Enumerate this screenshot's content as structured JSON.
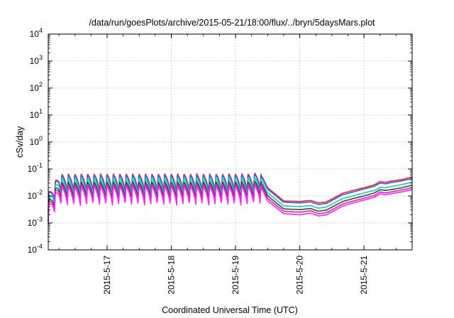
{
  "chart_data": {
    "type": "line",
    "title": "/data/run/goesPlots/archive/2015-05-21/18:00/flux/../bryn/5daysMars.plot",
    "xlabel": "Coordinated Universal Time (UTC)",
    "ylabel": "cSv/day",
    "yscale": "log",
    "ylim": [
      0.0001,
      10000
    ],
    "xlim": [
      "2015-05-16T02:00",
      "2015-05-21T18:00"
    ],
    "grid": true,
    "legend": "none",
    "y_ticks": [
      {
        "base": "10",
        "exp": "-4"
      },
      {
        "base": "10",
        "exp": "-3"
      },
      {
        "base": "10",
        "exp": "-2"
      },
      {
        "base": "10",
        "exp": "-1"
      },
      {
        "base": "10",
        "exp": "0"
      },
      {
        "base": "10",
        "exp": "1"
      },
      {
        "base": "10",
        "exp": "2"
      },
      {
        "base": "10",
        "exp": "3"
      },
      {
        "base": "10",
        "exp": "4"
      }
    ],
    "x_ticks": [
      {
        "t": "2015-05-17T00:00",
        "label": "2015-5-17"
      },
      {
        "t": "2015-05-18T00:00",
        "label": "2015-5-18"
      },
      {
        "t": "2015-05-19T00:00",
        "label": "2015-5-19"
      },
      {
        "t": "2015-05-20T00:00",
        "label": "2015-5-20"
      },
      {
        "t": "2015-05-21T00:00",
        "label": "2015-5-21"
      }
    ],
    "series_colors": [
      "#ff2020",
      "#3060e0",
      "#20c8b0",
      "#404040",
      "#c030a0",
      "#ff20ff"
    ],
    "series": [
      {
        "values": [
          [
            "2015-05-16T02:00",
            0.013
          ],
          [
            "2015-05-16T06:00",
            0.065
          ],
          [
            "2015-05-16T12:00",
            0.065
          ],
          [
            "2015-05-16T18:00",
            0.066
          ],
          [
            "2015-05-17T00:00",
            0.066
          ],
          [
            "2015-05-17T06:00",
            0.066
          ],
          [
            "2015-05-17T12:00",
            0.066
          ],
          [
            "2015-05-17T18:00",
            0.066
          ],
          [
            "2015-05-18T00:00",
            0.066
          ],
          [
            "2015-05-18T06:00",
            0.066
          ],
          [
            "2015-05-18T12:00",
            0.066
          ],
          [
            "2015-05-18T18:00",
            0.066
          ],
          [
            "2015-05-19T00:00",
            0.066
          ],
          [
            "2015-05-19T06:00",
            0.066
          ],
          [
            "2015-05-19T09:00",
            0.08
          ],
          [
            "2015-05-19T12:00",
            0.02
          ],
          [
            "2015-05-19T18:00",
            0.0065
          ],
          [
            "2015-05-20T00:00",
            0.0062
          ],
          [
            "2015-05-20T04:00",
            0.0068
          ],
          [
            "2015-05-20T07:00",
            0.0055
          ],
          [
            "2015-05-20T10:00",
            0.006
          ],
          [
            "2015-05-20T16:00",
            0.0125
          ],
          [
            "2015-05-20T20:00",
            0.016
          ],
          [
            "2015-05-21T00:00",
            0.02
          ],
          [
            "2015-05-21T04:00",
            0.026
          ],
          [
            "2015-05-21T06:00",
            0.034
          ],
          [
            "2015-05-21T08:00",
            0.032
          ],
          [
            "2015-05-21T10:00",
            0.035
          ],
          [
            "2015-05-21T14:00",
            0.04
          ],
          [
            "2015-05-21T18:00",
            0.05
          ]
        ]
      },
      {
        "values": [
          [
            "2015-05-16T02:00",
            0.012
          ],
          [
            "2015-05-16T06:00",
            0.06
          ],
          [
            "2015-05-16T12:00",
            0.06
          ],
          [
            "2015-05-16T18:00",
            0.061
          ],
          [
            "2015-05-17T00:00",
            0.061
          ],
          [
            "2015-05-17T06:00",
            0.061
          ],
          [
            "2015-05-17T12:00",
            0.061
          ],
          [
            "2015-05-17T18:00",
            0.061
          ],
          [
            "2015-05-18T00:00",
            0.061
          ],
          [
            "2015-05-18T06:00",
            0.061
          ],
          [
            "2015-05-18T12:00",
            0.061
          ],
          [
            "2015-05-18T18:00",
            0.061
          ],
          [
            "2015-05-19T00:00",
            0.061
          ],
          [
            "2015-05-19T06:00",
            0.061
          ],
          [
            "2015-05-19T09:00",
            0.075
          ],
          [
            "2015-05-19T12:00",
            0.018
          ],
          [
            "2015-05-19T18:00",
            0.0058
          ],
          [
            "2015-05-20T00:00",
            0.0055
          ],
          [
            "2015-05-20T04:00",
            0.006
          ],
          [
            "2015-05-20T07:00",
            0.0048
          ],
          [
            "2015-05-20T10:00",
            0.0053
          ],
          [
            "2015-05-20T16:00",
            0.011
          ],
          [
            "2015-05-20T20:00",
            0.014
          ],
          [
            "2015-05-21T00:00",
            0.018
          ],
          [
            "2015-05-21T04:00",
            0.023
          ],
          [
            "2015-05-21T06:00",
            0.03
          ],
          [
            "2015-05-21T08:00",
            0.028
          ],
          [
            "2015-05-21T10:00",
            0.031
          ],
          [
            "2015-05-21T14:00",
            0.036
          ],
          [
            "2015-05-21T18:00",
            0.044
          ]
        ]
      },
      {
        "values": [
          [
            "2015-05-16T02:00",
            0.009
          ],
          [
            "2015-05-16T06:00",
            0.045
          ],
          [
            "2015-05-16T12:00",
            0.045
          ],
          [
            "2015-05-16T18:00",
            0.046
          ],
          [
            "2015-05-17T00:00",
            0.046
          ],
          [
            "2015-05-17T06:00",
            0.046
          ],
          [
            "2015-05-17T12:00",
            0.046
          ],
          [
            "2015-05-17T18:00",
            0.046
          ],
          [
            "2015-05-18T00:00",
            0.046
          ],
          [
            "2015-05-18T06:00",
            0.046
          ],
          [
            "2015-05-18T12:00",
            0.046
          ],
          [
            "2015-05-18T18:00",
            0.046
          ],
          [
            "2015-05-19T00:00",
            0.046
          ],
          [
            "2015-05-19T06:00",
            0.046
          ],
          [
            "2015-05-19T09:00",
            0.056
          ],
          [
            "2015-05-19T12:00",
            0.013
          ],
          [
            "2015-05-19T18:00",
            0.0043
          ],
          [
            "2015-05-20T00:00",
            0.004
          ],
          [
            "2015-05-20T04:00",
            0.0044
          ],
          [
            "2015-05-20T07:00",
            0.0035
          ],
          [
            "2015-05-20T10:00",
            0.0039
          ],
          [
            "2015-05-20T16:00",
            0.008
          ],
          [
            "2015-05-20T20:00",
            0.01
          ],
          [
            "2015-05-21T00:00",
            0.013
          ],
          [
            "2015-05-21T04:00",
            0.016
          ],
          [
            "2015-05-21T06:00",
            0.021
          ],
          [
            "2015-05-21T08:00",
            0.02
          ],
          [
            "2015-05-21T10:00",
            0.022
          ],
          [
            "2015-05-21T14:00",
            0.026
          ],
          [
            "2015-05-21T18:00",
            0.032
          ]
        ]
      },
      {
        "values": [
          [
            "2015-05-16T02:00",
            0.0065
          ],
          [
            "2015-05-16T06:00",
            0.033
          ],
          [
            "2015-05-16T12:00",
            0.033
          ],
          [
            "2015-05-16T18:00",
            0.034
          ],
          [
            "2015-05-17T00:00",
            0.034
          ],
          [
            "2015-05-17T06:00",
            0.034
          ],
          [
            "2015-05-17T12:00",
            0.034
          ],
          [
            "2015-05-17T18:00",
            0.034
          ],
          [
            "2015-05-18T00:00",
            0.034
          ],
          [
            "2015-05-18T06:00",
            0.034
          ],
          [
            "2015-05-18T12:00",
            0.034
          ],
          [
            "2015-05-18T18:00",
            0.034
          ],
          [
            "2015-05-19T00:00",
            0.034
          ],
          [
            "2015-05-19T06:00",
            0.034
          ],
          [
            "2015-05-19T09:00",
            0.042
          ],
          [
            "2015-05-19T12:00",
            0.01
          ],
          [
            "2015-05-19T18:00",
            0.0033
          ],
          [
            "2015-05-20T00:00",
            0.0031
          ],
          [
            "2015-05-20T04:00",
            0.0034
          ],
          [
            "2015-05-20T07:00",
            0.0027
          ],
          [
            "2015-05-20T10:00",
            0.003
          ],
          [
            "2015-05-20T16:00",
            0.0062
          ],
          [
            "2015-05-20T20:00",
            0.008
          ],
          [
            "2015-05-21T00:00",
            0.01
          ],
          [
            "2015-05-21T04:00",
            0.013
          ],
          [
            "2015-05-21T06:00",
            0.017
          ],
          [
            "2015-05-21T08:00",
            0.016
          ],
          [
            "2015-05-21T10:00",
            0.017
          ],
          [
            "2015-05-21T14:00",
            0.02
          ],
          [
            "2015-05-21T18:00",
            0.025
          ]
        ]
      },
      {
        "values": [
          [
            "2015-05-16T02:00",
            0.0055
          ],
          [
            "2015-05-16T06:00",
            0.027
          ],
          [
            "2015-05-16T12:00",
            0.027
          ],
          [
            "2015-05-16T18:00",
            0.028
          ],
          [
            "2015-05-17T00:00",
            0.028
          ],
          [
            "2015-05-17T06:00",
            0.028
          ],
          [
            "2015-05-17T12:00",
            0.028
          ],
          [
            "2015-05-17T18:00",
            0.028
          ],
          [
            "2015-05-18T00:00",
            0.028
          ],
          [
            "2015-05-18T06:00",
            0.028
          ],
          [
            "2015-05-18T12:00",
            0.028
          ],
          [
            "2015-05-18T18:00",
            0.028
          ],
          [
            "2015-05-19T00:00",
            0.028
          ],
          [
            "2015-05-19T06:00",
            0.028
          ],
          [
            "2015-05-19T09:00",
            0.034
          ],
          [
            "2015-05-19T12:00",
            0.008
          ],
          [
            "2015-05-19T18:00",
            0.0027
          ],
          [
            "2015-05-20T00:00",
            0.0025
          ],
          [
            "2015-05-20T04:00",
            0.0028
          ],
          [
            "2015-05-20T07:00",
            0.0022
          ],
          [
            "2015-05-20T10:00",
            0.0024
          ],
          [
            "2015-05-20T16:00",
            0.005
          ],
          [
            "2015-05-20T20:00",
            0.0065
          ],
          [
            "2015-05-21T00:00",
            0.0082
          ],
          [
            "2015-05-21T04:00",
            0.0105
          ],
          [
            "2015-05-21T06:00",
            0.014
          ],
          [
            "2015-05-21T08:00",
            0.013
          ],
          [
            "2015-05-21T10:00",
            0.014
          ],
          [
            "2015-05-21T14:00",
            0.0165
          ],
          [
            "2015-05-21T18:00",
            0.02
          ]
        ]
      },
      {
        "values": [
          [
            "2015-05-16T02:00",
            0.0045
          ],
          [
            "2015-05-16T06:00",
            0.022
          ],
          [
            "2015-05-16T12:00",
            0.022
          ],
          [
            "2015-05-16T18:00",
            0.023
          ],
          [
            "2015-05-17T00:00",
            0.023
          ],
          [
            "2015-05-17T06:00",
            0.023
          ],
          [
            "2015-05-17T12:00",
            0.023
          ],
          [
            "2015-05-17T18:00",
            0.023
          ],
          [
            "2015-05-18T00:00",
            0.023
          ],
          [
            "2015-05-18T06:00",
            0.023
          ],
          [
            "2015-05-18T12:00",
            0.023
          ],
          [
            "2015-05-18T18:00",
            0.023
          ],
          [
            "2015-05-19T00:00",
            0.023
          ],
          [
            "2015-05-19T06:00",
            0.023
          ],
          [
            "2015-05-19T09:00",
            0.028
          ],
          [
            "2015-05-19T12:00",
            0.0065
          ],
          [
            "2015-05-19T18:00",
            0.0022
          ],
          [
            "2015-05-20T00:00",
            0.002
          ],
          [
            "2015-05-20T04:00",
            0.0023
          ],
          [
            "2015-05-20T07:00",
            0.0018
          ],
          [
            "2015-05-20T10:00",
            0.002
          ],
          [
            "2015-05-20T16:00",
            0.0042
          ],
          [
            "2015-05-20T20:00",
            0.0055
          ],
          [
            "2015-05-21T00:00",
            0.007
          ],
          [
            "2015-05-21T04:00",
            0.009
          ],
          [
            "2015-05-21T06:00",
            0.012
          ],
          [
            "2015-05-21T08:00",
            0.011
          ],
          [
            "2015-05-21T10:00",
            0.012
          ],
          [
            "2015-05-21T14:00",
            0.014
          ],
          [
            "2015-05-21T18:00",
            0.017
          ]
        ]
      }
    ]
  }
}
